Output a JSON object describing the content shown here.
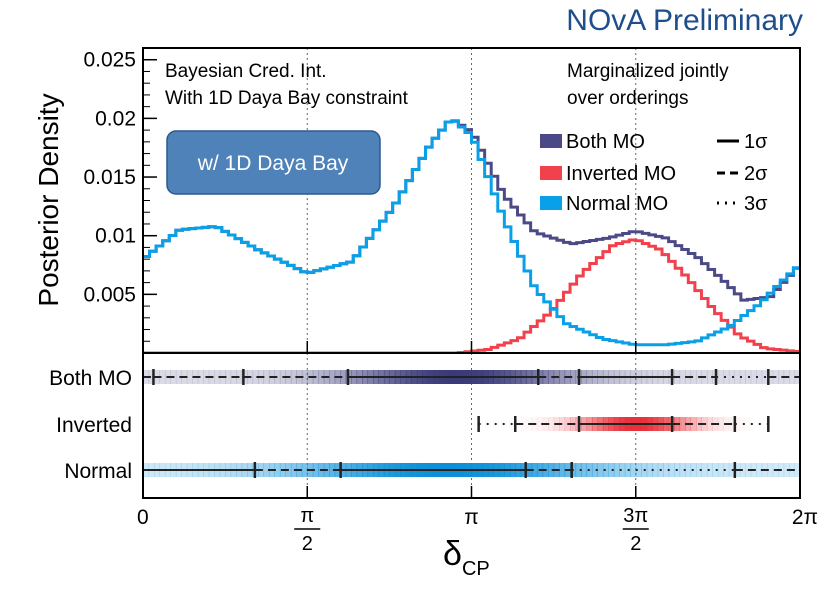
{
  "header": {
    "brand": "NOvA Preliminary",
    "brand_color": "#1f4e8c"
  },
  "chart_data": [
    {
      "type": "line",
      "panel": "posterior-density",
      "ylabel": "Posterior Density",
      "xlim": [
        0,
        6.2832
      ],
      "ylim": [
        0,
        0.026
      ],
      "yticks": [
        0.005,
        0.01,
        0.015,
        0.02,
        0.025
      ],
      "ytick_labels": [
        "0.005",
        "0.01",
        "0.015",
        "0.02",
        "0.025"
      ],
      "annotation_left": [
        "Bayesian Cred. Int.",
        "With 1D Daya Bay constraint"
      ],
      "annotation_right": [
        "Marginalized jointly",
        "over orderings"
      ],
      "badge": "w/ 1D Daya Bay",
      "badge_color": "#4f82b8",
      "legend_position": "top-right",
      "interval_legend": [
        {
          "label": "1σ",
          "style": "solid"
        },
        {
          "label": "2σ",
          "style": "dashed"
        },
        {
          "label": "3σ",
          "style": "dotted"
        }
      ],
      "series": [
        {
          "name": "Both MO",
          "color": "#4b4a87",
          "x": [
            0,
            0.35,
            0.7,
            1.1,
            1.57,
            2.0,
            2.4,
            2.75,
            2.95,
            3.15,
            3.45,
            3.75,
            4.1,
            4.45,
            4.71,
            5.0,
            5.3,
            5.55,
            5.75,
            6.0,
            6.28
          ],
          "y": [
            0.008,
            0.0105,
            0.0108,
            0.0088,
            0.0068,
            0.0078,
            0.0125,
            0.0178,
            0.02,
            0.0188,
            0.0135,
            0.0103,
            0.0093,
            0.0098,
            0.0104,
            0.0098,
            0.0082,
            0.0062,
            0.0045,
            0.0048,
            0.0075
          ]
        },
        {
          "name": "Inverted MO",
          "color": "#f0414c",
          "x": [
            0,
            2.5,
            3.0,
            3.3,
            3.6,
            3.9,
            4.2,
            4.5,
            4.71,
            4.95,
            5.2,
            5.45,
            5.7,
            5.95,
            6.28
          ],
          "y": [
            0,
            0,
            0,
            0.0003,
            0.0012,
            0.0035,
            0.0068,
            0.0092,
            0.0097,
            0.0088,
            0.0065,
            0.0038,
            0.0015,
            0.0004,
            0.0001
          ]
        },
        {
          "name": "Normal MO",
          "color": "#0aa0e8",
          "x": [
            0,
            0.35,
            0.7,
            1.1,
            1.57,
            2.0,
            2.4,
            2.75,
            2.95,
            3.15,
            3.45,
            3.75,
            4.05,
            4.4,
            4.71,
            5.0,
            5.3,
            5.6,
            5.9,
            6.1,
            6.28
          ],
          "y": [
            0.008,
            0.0105,
            0.0108,
            0.0088,
            0.0068,
            0.0078,
            0.0125,
            0.0178,
            0.02,
            0.0185,
            0.0115,
            0.0055,
            0.0025,
            0.0012,
            0.0007,
            0.0007,
            0.001,
            0.0022,
            0.0042,
            0.006,
            0.0075
          ]
        }
      ]
    },
    {
      "type": "table",
      "panel": "credible-intervals",
      "xlabel": "δ",
      "xlabel_sub": "CP",
      "xlim": [
        0,
        6.2832
      ],
      "xticks": [
        {
          "v": 0,
          "label": "0"
        },
        {
          "v": 1.5708,
          "num": "π",
          "den": "2"
        },
        {
          "v": 3.1416,
          "label": "π"
        },
        {
          "v": 4.7124,
          "num": "3π",
          "den": "2"
        },
        {
          "v": 6.2832,
          "label": "2π"
        }
      ],
      "rows": [
        {
          "label": "Both MO",
          "color": "#3a3a7a",
          "density_peak": 3.0,
          "density_width": 1.1,
          "segments": [
            {
              "from": 0.0,
              "to": 0.1,
              "style": "dashed"
            },
            {
              "from": 0.1,
              "to": 0.96,
              "style": "dashed"
            },
            {
              "from": 0.96,
              "to": 1.96,
              "style": "dashed"
            },
            {
              "from": 1.96,
              "to": 3.78,
              "style": "solid"
            },
            {
              "from": 3.78,
              "to": 4.17,
              "style": "dashed"
            },
            {
              "from": 4.17,
              "to": 5.06,
              "style": "solid"
            },
            {
              "from": 5.06,
              "to": 5.48,
              "style": "dashed"
            },
            {
              "from": 5.48,
              "to": 5.98,
              "style": "dotted"
            },
            {
              "from": 5.98,
              "to": 6.2832,
              "style": "dashed"
            }
          ],
          "ticks": [
            0.1,
            0.96,
            1.96,
            3.78,
            4.17,
            5.06,
            5.48,
            5.98
          ]
        },
        {
          "label": "Inverted",
          "color": "#e8303a",
          "density_peak": 4.71,
          "density_width": 0.55,
          "segments": [
            {
              "from": 3.21,
              "to": 3.56,
              "style": "dotted"
            },
            {
              "from": 3.56,
              "to": 4.17,
              "style": "dashed"
            },
            {
              "from": 4.17,
              "to": 5.06,
              "style": "solid"
            },
            {
              "from": 5.06,
              "to": 5.66,
              "style": "dashed"
            },
            {
              "from": 5.66,
              "to": 5.98,
              "style": "dotted"
            }
          ],
          "ticks": [
            3.21,
            3.56,
            4.17,
            5.06,
            5.66,
            5.98
          ]
        },
        {
          "label": "Normal",
          "color": "#0a8fd8",
          "density_peak": 2.9,
          "density_width": 1.5,
          "segments": [
            {
              "from": 0.0,
              "to": 1.07,
              "style": "solid"
            },
            {
              "from": 1.07,
              "to": 1.89,
              "style": "dashed"
            },
            {
              "from": 1.89,
              "to": 3.66,
              "style": "solid"
            },
            {
              "from": 3.66,
              "to": 4.1,
              "style": "dashed"
            },
            {
              "from": 4.1,
              "to": 5.66,
              "style": "dotted"
            },
            {
              "from": 5.66,
              "to": 6.2832,
              "style": "dashed"
            }
          ],
          "ticks": [
            1.07,
            1.89,
            3.66,
            4.1,
            5.66
          ]
        }
      ]
    }
  ]
}
